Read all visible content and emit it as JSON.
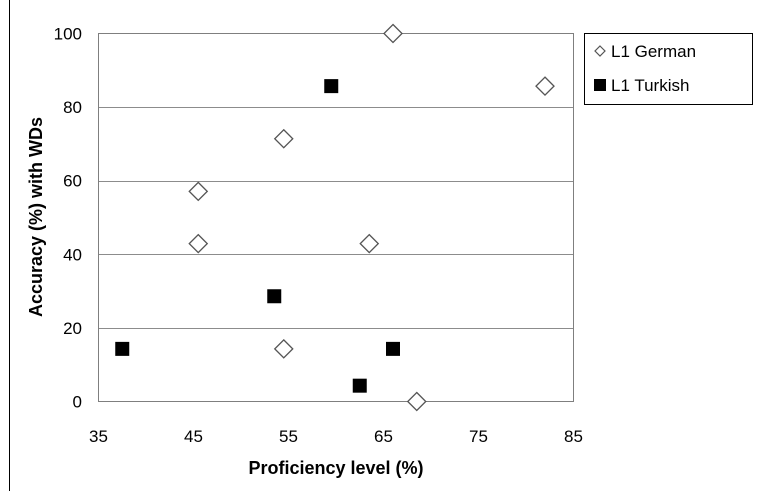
{
  "chart_data": {
    "type": "scatter",
    "title": "",
    "xlabel": "Proficiency level (%)",
    "ylabel": "Accuracy (%) with WDs",
    "xlim": [
      35,
      85
    ],
    "ylim": [
      0,
      100
    ],
    "x_ticks": [
      35,
      45,
      55,
      65,
      75,
      85
    ],
    "y_ticks": [
      0,
      20,
      40,
      60,
      80,
      100
    ],
    "grid": "horizontal",
    "legend_position": "top-right",
    "series": [
      {
        "name": "L1 German",
        "marker": "hollow-diamond",
        "color": "#000000",
        "points": [
          {
            "x": 66,
            "y": 100
          },
          {
            "x": 82,
            "y": 85.7
          },
          {
            "x": 54.5,
            "y": 71.4
          },
          {
            "x": 45.5,
            "y": 57.1
          },
          {
            "x": 45.5,
            "y": 42.9
          },
          {
            "x": 63.5,
            "y": 42.9
          },
          {
            "x": 54.5,
            "y": 14.3
          },
          {
            "x": 68.5,
            "y": 0
          }
        ]
      },
      {
        "name": "L1 Turkish",
        "marker": "filled-square",
        "color": "#000000",
        "points": [
          {
            "x": 59.5,
            "y": 85.7
          },
          {
            "x": 53.5,
            "y": 28.6
          },
          {
            "x": 37.5,
            "y": 14.3
          },
          {
            "x": 66,
            "y": 14.3
          },
          {
            "x": 62.5,
            "y": 4.3
          }
        ]
      }
    ]
  }
}
